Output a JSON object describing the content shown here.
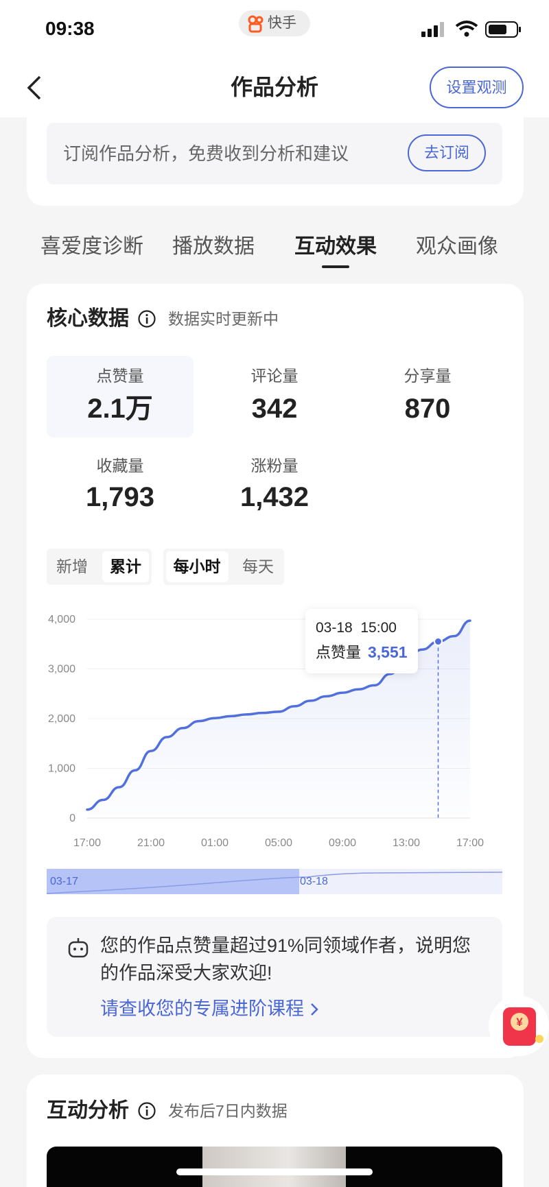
{
  "status_bar": {
    "time": "09:38",
    "app": "快手"
  },
  "nav": {
    "title": "作品分析",
    "action": "设置观测"
  },
  "subscribe": {
    "text": "订阅作品分析，免费收到分析和建议",
    "button": "去订阅"
  },
  "tabs": [
    "喜爱度诊断",
    "播放数据",
    "互动效果",
    "观众画像"
  ],
  "core": {
    "title": "核心数据",
    "subtitle": "数据实时更新中",
    "metrics": [
      {
        "label": "点赞量",
        "value": "2.1万"
      },
      {
        "label": "评论量",
        "value": "342"
      },
      {
        "label": "分享量",
        "value": "870"
      },
      {
        "label": "收藏量",
        "value": "1,793"
      },
      {
        "label": "涨粉量",
        "value": "1,432"
      }
    ]
  },
  "toggles": {
    "mode": [
      "新增",
      "累计"
    ],
    "granularity": [
      "每小时",
      "每天"
    ]
  },
  "chart": {
    "type": "line",
    "color": "#5170dc",
    "categories": [
      "17:00",
      null,
      null,
      null,
      "21:00",
      null,
      null,
      null,
      "01:00",
      null,
      null,
      null,
      "05:00",
      null,
      null,
      null,
      "09:00",
      null,
      null,
      null,
      "13:00",
      null,
      null,
      null,
      "17:00"
    ],
    "values": [
      170,
      365,
      620,
      960,
      1350,
      1630,
      1810,
      1950,
      2010,
      2050,
      2085,
      2115,
      2140,
      2250,
      2360,
      2450,
      2520,
      2590,
      2670,
      2900,
      3200,
      3390,
      3551,
      3660,
      3970
    ],
    "ylim": [
      0,
      4000
    ],
    "yticks": [
      0,
      {
        "value": 1000,
        "label": "1,000"
      },
      {
        "value": 2000,
        "label": "2,000"
      },
      {
        "value": 3000,
        "label": "3,000"
      },
      {
        "value": 4000,
        "label": "4,000"
      }
    ],
    "grid": true,
    "tooltip": {
      "date": "03-18  15:00",
      "label": "点赞量",
      "value_label": "3,551"
    },
    "range": {
      "start": "03-17",
      "end": "03-18"
    }
  },
  "insight": {
    "lines": [
      "您的作品点赞量超过91%同领域作者，说明您",
      "的作品深受大家欢迎!"
    ],
    "link": "请查收您的专属进阶课程"
  },
  "interaction": {
    "title": "互动分析",
    "subtitle": "发布后7日内数据"
  }
}
